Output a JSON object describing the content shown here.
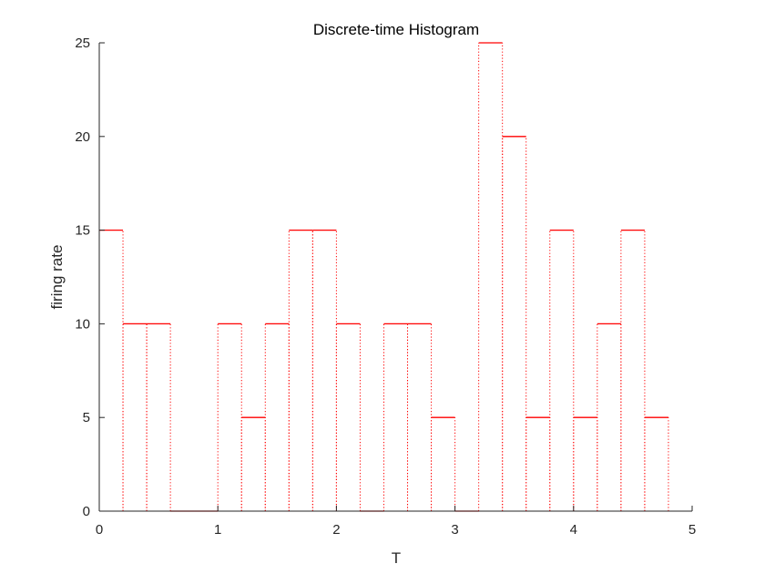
{
  "chart_data": {
    "type": "bar",
    "title": "Discrete-time Histogram",
    "xlabel": "T",
    "ylabel": "firing rate",
    "bin_width": 0.2,
    "x": [
      0,
      0.2,
      0.4,
      0.6,
      0.8,
      1.0,
      1.2,
      1.4,
      1.6,
      1.8,
      2.0,
      2.2,
      2.4,
      2.6,
      2.8,
      3.0,
      3.2,
      3.4,
      3.6,
      3.8,
      4.0,
      4.2,
      4.4,
      4.6
    ],
    "values": [
      15,
      10,
      10,
      0,
      0,
      10,
      5,
      10,
      15,
      15,
      10,
      0,
      10,
      10,
      5,
      0,
      25,
      20,
      5,
      15,
      5,
      10,
      15,
      5
    ],
    "xlim": [
      0,
      5
    ],
    "ylim": [
      0,
      25
    ],
    "xticks": [
      0,
      1,
      2,
      3,
      4,
      5
    ],
    "yticks": [
      0,
      5,
      10,
      15,
      20,
      25
    ],
    "grid": false,
    "style": {
      "bar_top_color": "#ff0000",
      "bar_side_color": "#ff0000",
      "bar_side_dash": "dotted",
      "axis_color": "#262626"
    }
  }
}
